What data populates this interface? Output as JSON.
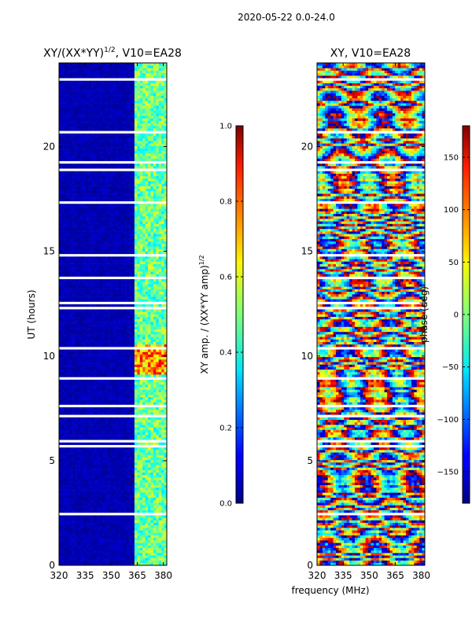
{
  "suptitle": "2020-05-22 0.0-24.0",
  "xlabel_shared": "frequency (MHz)",
  "chart_data": [
    {
      "type": "heatmap",
      "title_main": "XY/(XX*YY)",
      "title_sup": "1/2",
      "title_rest": ", V10=EA28",
      "ylabel": "UT (hours)",
      "xlim": [
        320,
        382
      ],
      "ylim": [
        0,
        24
      ],
      "xticks": [
        320,
        335,
        350,
        365,
        380
      ],
      "yticks": [
        0,
        5,
        10,
        15,
        20
      ],
      "colorbar": {
        "label_main": "XY amp. / (XX*YY amp)",
        "label_sup": "1/2",
        "range": [
          0.0,
          1.0
        ],
        "ticks": [
          0.0,
          0.2,
          0.4,
          0.6,
          0.8,
          1.0
        ],
        "ticklabels": [
          "0.0",
          "0.2",
          "0.4",
          "0.6",
          "0.8",
          "1.0"
        ]
      }
    },
    {
      "type": "heatmap",
      "title_main": "XY, V10=EA28",
      "xlim": [
        320,
        382
      ],
      "ylim": [
        0,
        24
      ],
      "xticks": [
        320,
        335,
        350,
        365,
        380
      ],
      "yticks": [
        0,
        5,
        10,
        15,
        20
      ],
      "colorbar": {
        "label_main": "phase (deg)",
        "range": [
          -180,
          180
        ],
        "ticks": [
          -150,
          -100,
          -50,
          0,
          50,
          100,
          150
        ],
        "ticklabels": [
          "−150",
          "−100",
          "−50",
          "0",
          "50",
          "100",
          "150"
        ]
      }
    }
  ]
}
